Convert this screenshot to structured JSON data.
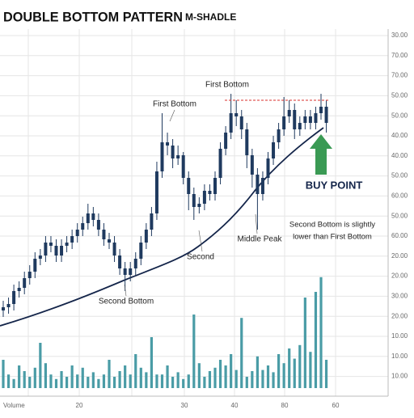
{
  "chart_data": {
    "type": "candlestick",
    "title": "DOUBLE BOTTOM PATTERN",
    "subtitle": "M-SHADLE",
    "color": "#1f3a5f",
    "volume_color": "#4a9ca6",
    "ylim": [
      0,
      100
    ],
    "vlim": [
      0,
      100
    ],
    "y_axis_labels": [
      "30.00",
      "70.00",
      "70.00",
      "50.00",
      "50.00",
      "40.00",
      "40.00",
      "50.00",
      "60.00",
      "50.00",
      "60.00",
      "20.00",
      "20.00",
      "30.00",
      "20.00",
      "10.00",
      "10.00",
      "10.00"
    ],
    "x_axis_title": "Volume",
    "x_axis_labels": [
      "20",
      "30",
      "40",
      "80",
      "60"
    ],
    "resistance_level": 74,
    "open": [
      9,
      10,
      11,
      15,
      16,
      19,
      21,
      25,
      26,
      30,
      29,
      26,
      29,
      30,
      32,
      34,
      36,
      39,
      37,
      34,
      31,
      30,
      26,
      22,
      20,
      22,
      25,
      30,
      34,
      39,
      52,
      61,
      60,
      56,
      57,
      50,
      45,
      41,
      42,
      46,
      45,
      50,
      59,
      64,
      70,
      69,
      65,
      57,
      51,
      45,
      50,
      56,
      61,
      65,
      69,
      71,
      65,
      67,
      69,
      67,
      70,
      72
    ],
    "high": [
      12,
      13,
      17,
      18,
      21,
      23,
      27,
      28,
      32,
      32,
      31,
      31,
      32,
      34,
      36,
      38,
      42,
      41,
      39,
      36,
      33,
      32,
      28,
      24,
      24,
      27,
      32,
      36,
      41,
      55,
      70,
      64,
      62,
      60,
      58,
      52,
      47,
      44,
      48,
      48,
      52,
      61,
      66,
      76,
      74,
      71,
      67,
      59,
      53,
      52,
      58,
      63,
      67,
      75,
      74,
      73,
      69,
      71,
      71,
      72,
      76,
      74
    ],
    "low": [
      7,
      8,
      9,
      13,
      14,
      17,
      19,
      23,
      24,
      27,
      24,
      24,
      27,
      28,
      30,
      32,
      34,
      35,
      32,
      29,
      28,
      24,
      20,
      15,
      18,
      20,
      23,
      28,
      32,
      37,
      50,
      57,
      53,
      54,
      48,
      40,
      37,
      39,
      40,
      43,
      43,
      48,
      57,
      62,
      66,
      62,
      53,
      47,
      34,
      43,
      48,
      54,
      59,
      63,
      67,
      62,
      63,
      65,
      65,
      65,
      68,
      64
    ],
    "close": [
      10,
      11,
      15,
      16,
      19,
      21,
      25,
      26,
      30,
      29,
      26,
      29,
      30,
      32,
      34,
      36,
      39,
      37,
      34,
      31,
      30,
      26,
      22,
      20,
      22,
      25,
      30,
      34,
      39,
      52,
      61,
      60,
      56,
      57,
      50,
      45,
      41,
      42,
      46,
      45,
      50,
      59,
      64,
      70,
      69,
      65,
      57,
      51,
      45,
      50,
      56,
      61,
      65,
      69,
      71,
      65,
      67,
      69,
      67,
      70,
      72,
      67
    ],
    "volume": [
      25,
      12,
      8,
      20,
      15,
      10,
      18,
      40,
      22,
      12,
      8,
      15,
      10,
      20,
      12,
      18,
      10,
      14,
      8,
      12,
      25,
      10,
      15,
      20,
      12,
      30,
      18,
      14,
      45,
      12,
      12,
      20,
      10,
      14,
      8,
      12,
      65,
      22,
      10,
      15,
      18,
      25,
      20,
      30,
      16,
      62,
      10,
      15,
      28,
      16,
      20,
      14,
      30,
      22,
      35,
      26,
      38,
      80,
      32,
      85,
      98,
      25
    ],
    "annotations": [
      "First Bottom",
      "First Bottom",
      "Second",
      "Second Bottom",
      "Middle Peak",
      "BUY POINT",
      "Second Bottom is slightly",
      "lower than First Bottom"
    ]
  }
}
